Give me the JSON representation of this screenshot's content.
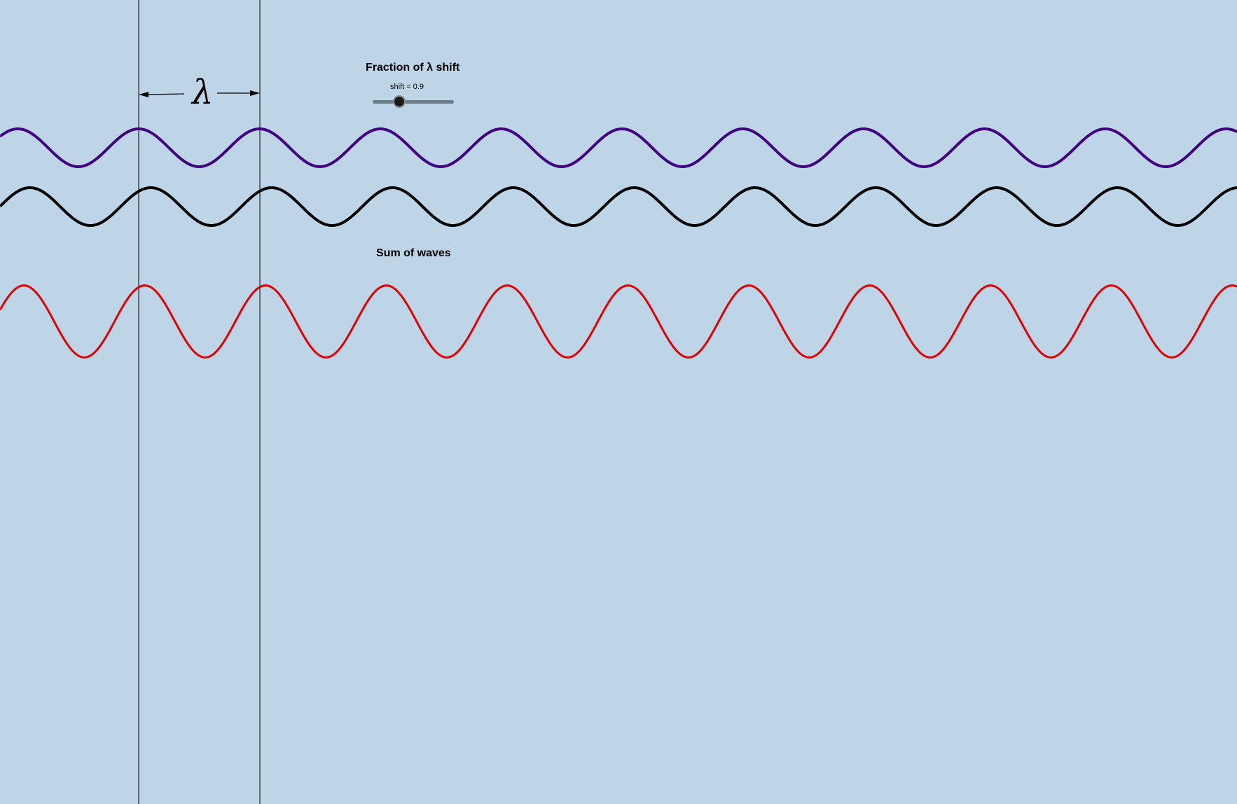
{
  "colors": {
    "background": "#bed4e7",
    "wave_top": "#400080",
    "wave_middle": "#000000",
    "wave_sum": "#e00000",
    "guide_lines": "#000000"
  },
  "slider": {
    "title": "Fraction of λ shift",
    "readout": "shift = 0.9",
    "value": 0.9,
    "min": 0,
    "max": 3
  },
  "labels": {
    "sum_of_waves": "Sum of waves",
    "wavelength_symbol": "λ"
  }
}
